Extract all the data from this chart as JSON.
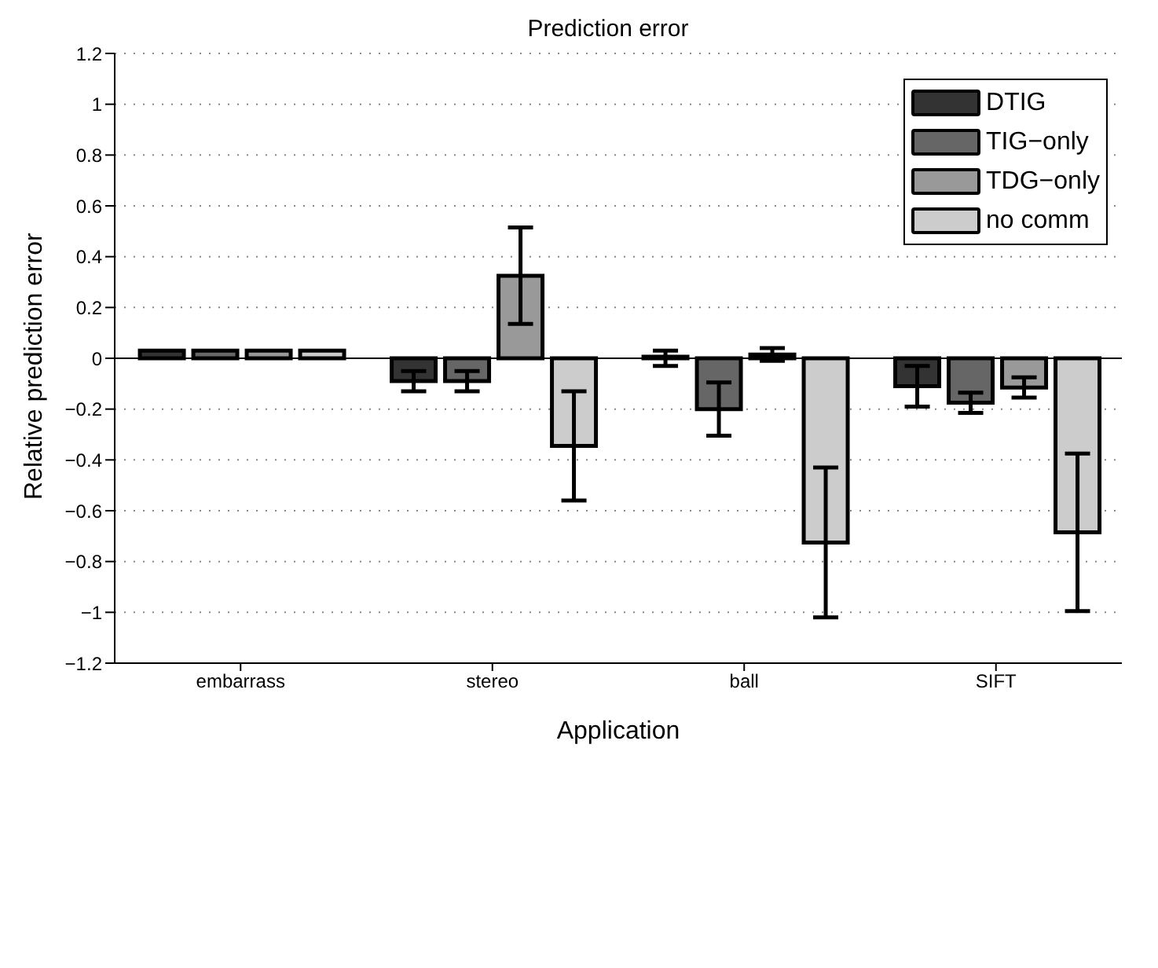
{
  "chart_data": {
    "type": "bar",
    "title": "Prediction error",
    "xlabel": "Application",
    "ylabel": "Relative prediction error",
    "categories": [
      "embarrass",
      "stereo",
      "ball",
      "SIFT"
    ],
    "series": [
      {
        "name": "DTIG",
        "color": "#333333",
        "values": [
          0.03,
          -0.09,
          0.0,
          -0.11
        ],
        "errors": [
          null,
          0.04,
          0.03,
          0.08
        ]
      },
      {
        "name": "TIG−only",
        "color": "#666666",
        "values": [
          0.03,
          -0.09,
          -0.2,
          -0.175
        ],
        "errors": [
          null,
          0.04,
          0.105,
          0.04
        ]
      },
      {
        "name": "TDG−only",
        "color": "#999999",
        "values": [
          0.03,
          0.325,
          0.015,
          -0.115
        ],
        "errors": [
          null,
          0.19,
          0.025,
          0.04
        ]
      },
      {
        "name": "no comm",
        "color": "#cccccc",
        "values": [
          0.03,
          -0.345,
          -0.725,
          -0.685
        ],
        "errors": [
          null,
          0.215,
          0.295,
          0.31
        ]
      }
    ],
    "ylim": [
      -1.2,
      1.2
    ],
    "yticks": [
      {
        "value": -1.2,
        "label": "−1.2"
      },
      {
        "value": -1,
        "label": "−1"
      },
      {
        "value": -0.8,
        "label": "−0.8"
      },
      {
        "value": -0.6,
        "label": "−0.6"
      },
      {
        "value": -0.4,
        "label": "−0.4"
      },
      {
        "value": -0.2,
        "label": "−0.2"
      },
      0,
      0.2,
      0.4,
      0.6,
      0.8,
      1,
      1.2
    ],
    "grid": "y",
    "legend": "top right"
  }
}
